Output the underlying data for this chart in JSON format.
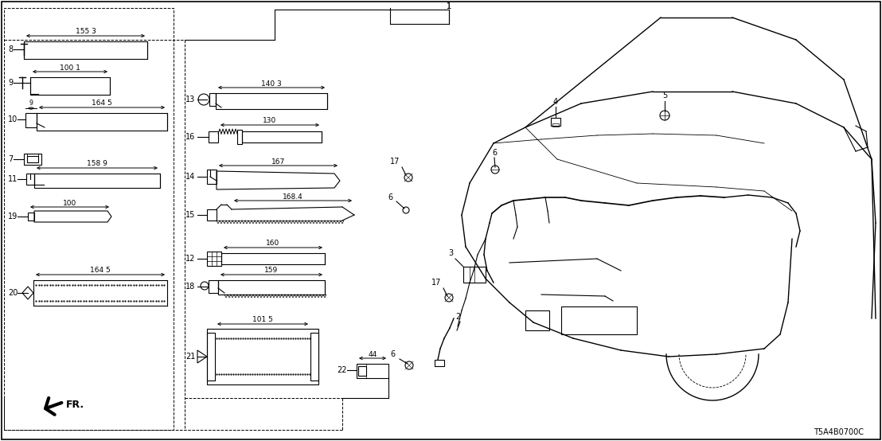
{
  "bg_color": "#ffffff",
  "line_color": "#000000",
  "diagram_code": "T5A4B0700C"
}
